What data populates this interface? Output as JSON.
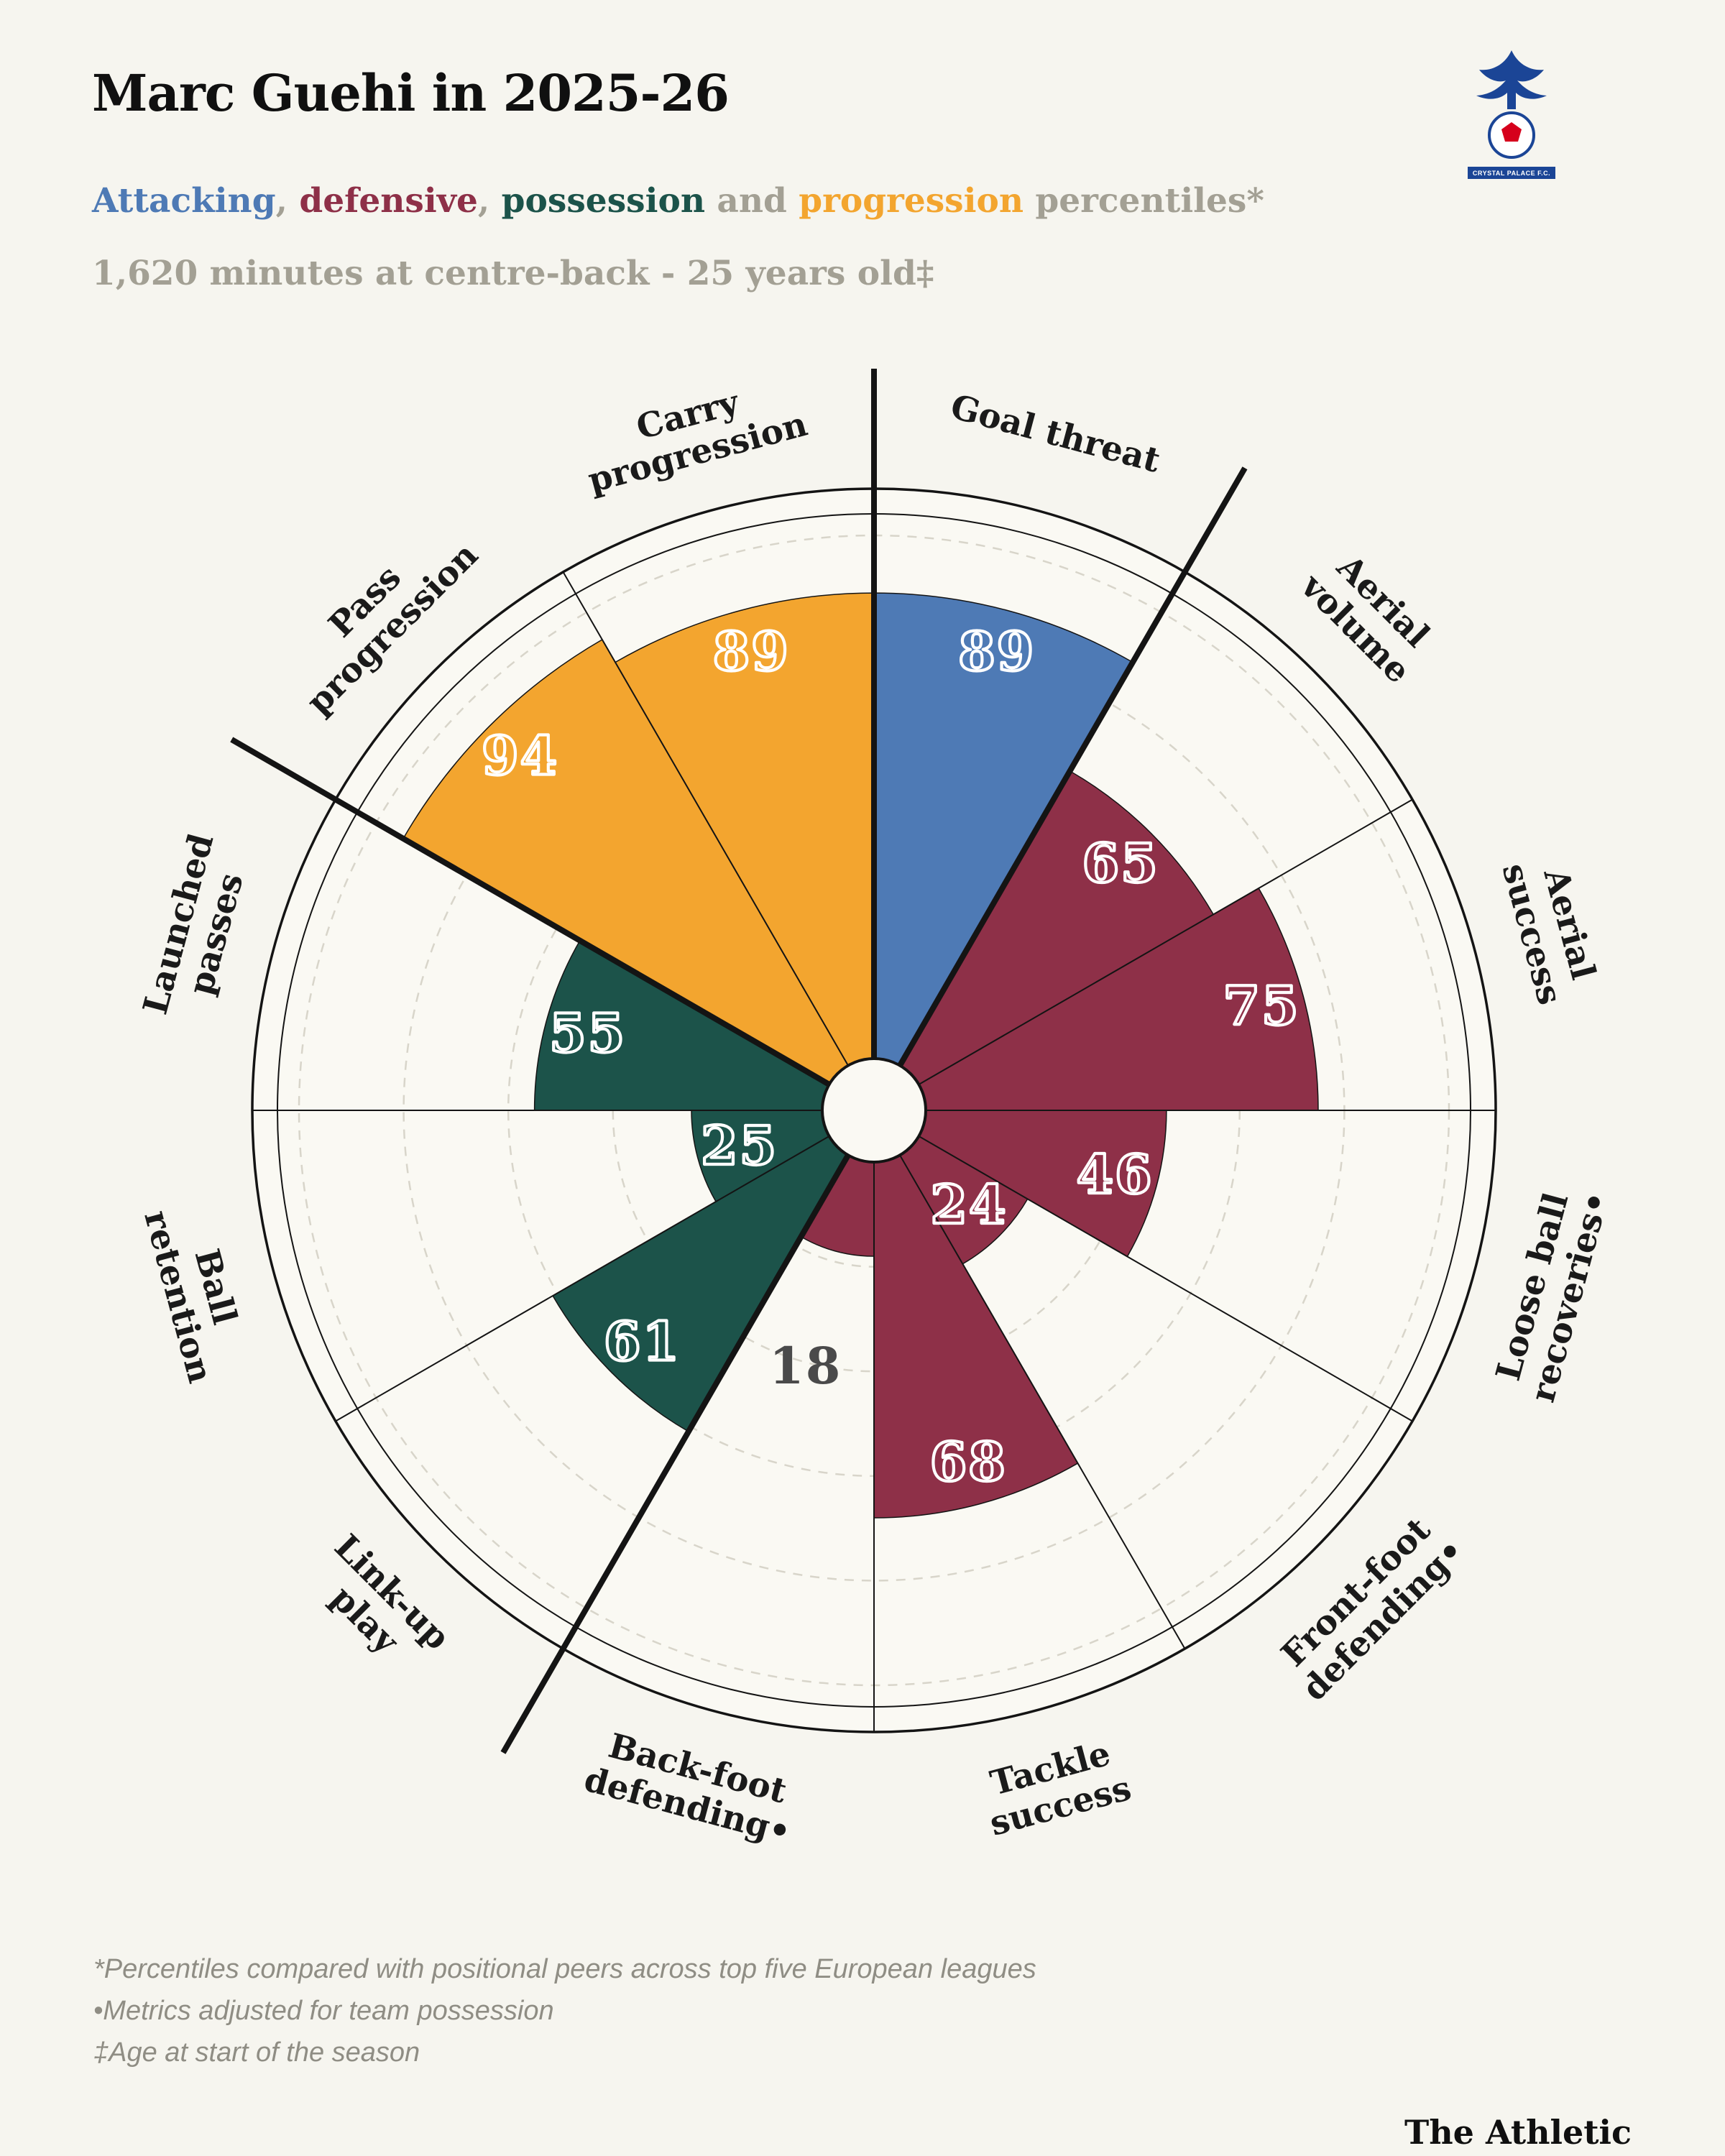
{
  "header": {
    "title": "Marc Guehi in 2025-26",
    "sub": {
      "attacking": "Attacking",
      "sep1": ", ",
      "defensive": "defensive",
      "sep2": ", ",
      "possession": "possession",
      "and": " and ",
      "progression": "progression",
      "tail": " percentiles*"
    },
    "meta": "1,620 minutes at centre-back - 25 years old‡"
  },
  "club_badge": {
    "name": "Crystal Palace FC crest",
    "banner_text": "CRYSTAL PALACE F.C."
  },
  "colors": {
    "attacking": "#4e7ab5",
    "defensive": "#8e3048",
    "possession": "#1c534a",
    "progression": "#f3a52f",
    "page_bg": "#f6f5ef",
    "chart_bg": "#faf9f3",
    "grid": "#d8d5ca",
    "line": "#141414",
    "label_text": "#1a1a1a",
    "small_value_text": "#4a4a4a",
    "muted": "#a3a094"
  },
  "chart_data": {
    "type": "pie",
    "subtype": "pizza-percentile",
    "scale": [
      0,
      100
    ],
    "slice_angle_deg": 30,
    "start_angle_deg": 0,
    "gridlines": [
      20,
      40,
      60,
      80,
      100
    ],
    "group_boundaries_deg": [
      0,
      30,
      210,
      300
    ],
    "legend_position": "in-subtitle",
    "slices": [
      {
        "label": "Goal threat",
        "label_lines": [
          "Goal threat"
        ],
        "value": 89,
        "group": "attacking"
      },
      {
        "label": "Aerial volume",
        "label_lines": [
          "Aerial",
          "volume"
        ],
        "value": 65,
        "group": "defensive"
      },
      {
        "label": "Aerial success",
        "label_lines": [
          "Aerial",
          "success"
        ],
        "value": 75,
        "group": "defensive"
      },
      {
        "label": "Loose ball recoveries•",
        "label_lines": [
          "Loose ball",
          "recoveries•"
        ],
        "value": 46,
        "group": "defensive"
      },
      {
        "label": "Front-foot defending•",
        "label_lines": [
          "Front-foot",
          "defending•"
        ],
        "value": 24,
        "group": "defensive"
      },
      {
        "label": "Tackle success",
        "label_lines": [
          "Tackle",
          "success"
        ],
        "value": 68,
        "group": "defensive"
      },
      {
        "label": "Back-foot defending•",
        "label_lines": [
          "Back-foot",
          "defending•"
        ],
        "value": 18,
        "group": "defensive"
      },
      {
        "label": "Link-up play",
        "label_lines": [
          "Link-up",
          "play"
        ],
        "value": 61,
        "group": "possession"
      },
      {
        "label": "Ball retention",
        "label_lines": [
          "Ball",
          "retention"
        ],
        "value": 25,
        "group": "possession"
      },
      {
        "label": "Launched passes",
        "label_lines": [
          "Launched",
          "passes"
        ],
        "value": 55,
        "group": "possession"
      },
      {
        "label": "Pass progression",
        "label_lines": [
          "Pass",
          "progression"
        ],
        "value": 94,
        "group": "progression"
      },
      {
        "label": "Carry progression",
        "label_lines": [
          "Carry",
          "progression"
        ],
        "value": 89,
        "group": "progression"
      }
    ]
  },
  "footnotes": [
    "*Percentiles compared with positional peers across top five European leagues",
    "•Metrics adjusted for team possession",
    "‡Age at start of the season"
  ],
  "brand": "The Athletic"
}
